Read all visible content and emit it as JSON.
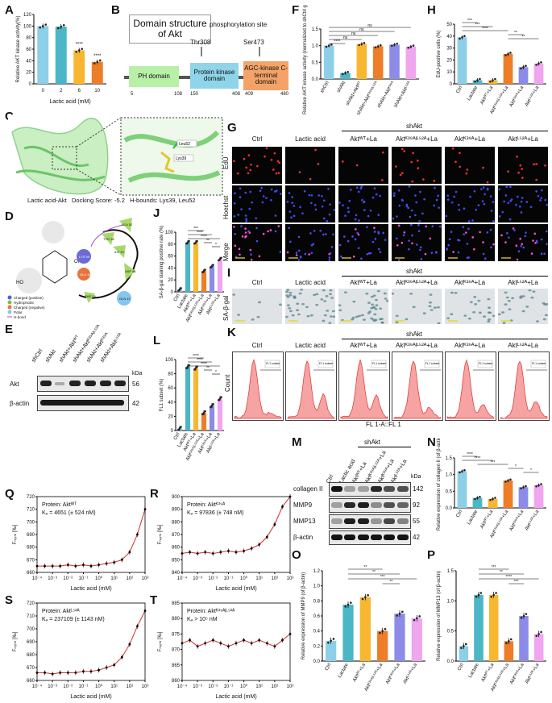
{
  "panels": {
    "A": {
      "label": "A",
      "ylabel": "Relative AKT kinase activity(%)",
      "xlabel": "Lactic acid (mM)",
      "categories": [
        "0",
        "2",
        "6",
        "10"
      ],
      "values": [
        100,
        99,
        58,
        38
      ],
      "sig": [
        "",
        "",
        "****",
        "****"
      ],
      "colors": [
        "#8ecfe8",
        "#4bb6c6",
        "#f7b731",
        "#ee7d28"
      ],
      "yticks": [
        "0",
        "20",
        "40",
        "60",
        "80",
        "100",
        "120"
      ]
    },
    "B": {
      "label": "B",
      "title": "Domain structure of Akt",
      "phos": "phosphorylation site",
      "thr": "Thr308",
      "ser": "Ser473",
      "domains": [
        {
          "name": "PH domain",
          "color": "#b8f0a8"
        },
        {
          "name": "Protein kinase domain",
          "color": "#8fd5ea"
        },
        {
          "name": "AGC-kinase C-terminal domain",
          "color": "#f3a368"
        }
      ],
      "positions": [
        "5",
        "108",
        "150",
        "408",
        "409",
        "480"
      ]
    },
    "C": {
      "label": "C",
      "caption": "Lactic acid-Akt   Docking Score: -5.2   H-bounds: Lys39, Leu52",
      "res1": "Leu52",
      "res2": "Lys39"
    },
    "D": {
      "label": "D",
      "legend": [
        "Charged (positive)",
        "Hydrophobic",
        "Charged (negative)",
        "Polar",
        "H-bond"
      ],
      "legend_colors": [
        "#5b5bd6",
        "#7cc24a",
        "#e8743b",
        "#86c5ee",
        "#b04ad6"
      ],
      "residues": [
        "LEU 52",
        "TYR 18",
        "ILE 19",
        "LYS 39",
        "GLU 40",
        "ASP 46",
        "PHE 55",
        "GLN 47"
      ]
    },
    "E": {
      "label": "E",
      "rows": [
        "Akt",
        "β-actin"
      ],
      "kda": [
        "56",
        "42"
      ],
      "kda_label": "kDa",
      "lanes": [
        "shCtrl",
        "shAkt",
        "shAkt+Aktᵂᵀ",
        "shAkt+Aktᴷ³⁹ᴬʲᴸ⁵²ᴬ",
        "shAkt+Aktᴷ³⁹ᴬ",
        "shAkt+Aktᴸ⁵²ᴬ"
      ]
    },
    "F": {
      "label": "F",
      "ylabel": "Relative AKT kinase activity (normalized to shCtrl group)",
      "categories": [
        "shCtrl",
        "shAkt",
        "shAkt+Aktᵂᵀ",
        "shAkt+Aktᴷ³⁹ᴬʲᴸ⁵²ᴬ",
        "shAkt+Aktᴷ³⁹ᴬ",
        "shAkt+Aktᴸ⁵²ᴬ"
      ],
      "values": [
        1.0,
        0.18,
        1.05,
        0.98,
        1.03,
        0.97
      ],
      "colors": [
        "#8ecfe8",
        "#4bb6c6",
        "#f7b731",
        "#ee7d28",
        "#8c8ce8",
        "#f0a6ee"
      ],
      "yticks": [
        "0.0",
        "0.5",
        "1.0",
        "1.5"
      ],
      "sig": [
        "ns",
        "ns",
        "ns",
        "ns",
        "****"
      ]
    },
    "G": {
      "label": "G",
      "cols": [
        "Ctrl",
        "Lactic acid",
        "Aktᵂᵀ+La",
        "Aktᴷ³⁹ᴬʲᴸ⁵²ᴬ+La",
        "Aktᴷ³⁹ᴬ+La",
        "Aktᴸ⁵²ᴬ+La"
      ],
      "group": "shAkt",
      "rows": [
        "EdU",
        "Hoechst",
        "Merge"
      ]
    },
    "H": {
      "label": "H",
      "ylabel": "EdU-positive cells (%)",
      "categories": [
        "Ctrl",
        "Lactate",
        "Aktᵂᵀ+La",
        "Aktᴷ³⁹ᴬʲᴸ⁵²ᴬ+La",
        "Aktᴷ³⁹ᴬ+La",
        "Aktᴸ⁵²ᴬ+La"
      ],
      "values": [
        39,
        3,
        3,
        25,
        14,
        17
      ],
      "colors": [
        "#8ecfe8",
        "#4bb6c6",
        "#f7b731",
        "#ee7d28",
        "#8c8ce8",
        "#f0a6ee"
      ],
      "yticks": [
        "0",
        "10",
        "20",
        "30",
        "40",
        "50"
      ],
      "sig": [
        "***",
        "***",
        "****",
        "**",
        "**"
      ]
    },
    "I": {
      "label": "I",
      "cols": [
        "Ctrl",
        "Lactic acid",
        "Aktᵂᵀ+La",
        "Aktᴷ³⁹ᴬʲᴸ⁵²ᴬ+La",
        "Aktᴷ³⁹ᴬ+La",
        "Aktᴸ⁵²ᴬ+La"
      ],
      "group": "shAkt",
      "row": "SA-β-gal"
    },
    "J": {
      "label": "J",
      "ylabel": "SA-β-gal staining positive rate (%)",
      "categories": [
        "Ctrl",
        "Lactate",
        "Aktᵂᵀ+La",
        "Aktᴷ³⁹ᴬʲᴸ⁵²ᴬ+La",
        "Aktᴷ³⁹ᴬ+La",
        "Aktᴸ⁵²ᴬ+La"
      ],
      "values": [
        4,
        83,
        83,
        35,
        43,
        55
      ],
      "colors": [
        "#8ecfe8",
        "#4bb6c6",
        "#f7b731",
        "#ee7d28",
        "#8c8ce8",
        "#f0a6ee"
      ],
      "yticks": [
        "0",
        "20",
        "40",
        "60",
        "80",
        "100"
      ],
      "sig": [
        "***",
        "****",
        "****",
        "**",
        "*"
      ]
    },
    "K": {
      "label": "K",
      "cols": [
        "Ctrl",
        "Lactic acid",
        "Aktᵂᵀ+La",
        "Aktᴷ³⁹ᴬʲᴸ⁵²ᴬ+La",
        "Aktᴷ³⁹ᴬ+La",
        "Aktᴸ⁵²ᴬ+La"
      ],
      "group": "shAkt",
      "ylabel": "Count",
      "xlabel": "FL 1-A::FL 1",
      "subset": "FL1 subset"
    },
    "L": {
      "label": "L",
      "ylabel": "FL1 subset (%)",
      "categories": [
        "Ctrl",
        "Lactate",
        "Aktᵂᵀ+La",
        "Aktᴷ³⁹ᴬʲᴸ⁵²ᴬ+La",
        "Aktᴷ³⁹ᴬ+La",
        "Aktᴸ⁵²ᴬ+La"
      ],
      "values": [
        3,
        90,
        88,
        25,
        35,
        45
      ],
      "colors": [
        "#8ecfe8",
        "#4bb6c6",
        "#f7b731",
        "#ee7d28",
        "#8c8ce8",
        "#f0a6ee"
      ],
      "yticks": [
        "0",
        "20",
        "40",
        "60",
        "80",
        "100"
      ],
      "sig": [
        "****",
        "****",
        "****",
        "**",
        "*"
      ]
    },
    "M": {
      "label": "M",
      "group": "shAkt",
      "rows": [
        "collagen II",
        "MMP9",
        "MMP13",
        "β-actin"
      ],
      "kda": [
        "142",
        "92",
        "55",
        "42"
      ],
      "kda_label": "kDa",
      "lanes": [
        "Ctrl",
        "Lactic acid",
        "Aktᵂᵀ+La",
        "Aktᴷ³⁹ᴬʲᴸ⁵²ᴬ+La",
        "Aktᴷ³⁹ᴬ+La",
        "Aktᴸ⁵²ᴬ+La"
      ]
    },
    "N": {
      "label": "N",
      "ylabel": "Relative expression of collagen II (of β-actin)",
      "categories": [
        "Ctrl",
        "Lactate",
        "Aktᵂᵀ+La",
        "Aktᴷ³⁹ᴬʲᴸ⁵²ᴬ+La",
        "Aktᴷ³⁹ᴬ+La",
        "Aktᴸ⁵²ᴬ+La"
      ],
      "values": [
        1.1,
        0.3,
        0.27,
        0.82,
        0.62,
        0.68
      ],
      "colors": [
        "#8ecfe8",
        "#4bb6c6",
        "#f7b731",
        "#ee7d28",
        "#8c8ce8",
        "#f0a6ee"
      ],
      "yticks": [
        "0.0",
        "0.5",
        "1.0",
        "1.5"
      ],
      "sig": [
        "****",
        "****",
        "***",
        "*",
        "*"
      ]
    },
    "O": {
      "label": "O",
      "ylabel": "Relative expression of MMP9 (of β-actin)",
      "categories": [
        "Ctrl",
        "Lactate",
        "Aktᵂᵀ+La",
        "Aktᴷ³⁹ᴬʲᴸ⁵²ᴬ+La",
        "Aktᴷ³⁹ᴬ+La",
        "Aktᴸ⁵²ᴬ+La"
      ],
      "values": [
        0.27,
        0.75,
        0.85,
        0.4,
        0.63,
        0.57
      ],
      "colors": [
        "#8ecfe8",
        "#4bb6c6",
        "#f7b731",
        "#ee7d28",
        "#8c8ce8",
        "#f0a6ee"
      ],
      "yticks": [
        "0.0",
        "0.2",
        "0.4",
        "0.6",
        "0.8",
        "1.0",
        "1.2"
      ],
      "sig": [
        "**",
        "**",
        "***",
        "**"
      ]
    },
    "P": {
      "label": "P",
      "ylabel": "Relative expression of MMP13 (of β-actin)",
      "categories": [
        "Ctrl",
        "Lactate",
        "Aktᵂᵀ+La",
        "Aktᴷ³⁹ᴬʲᴸ⁵²ᴬ+La",
        "Aktᴷ³⁹ᴬ+La",
        "Aktᴸ⁵²ᴬ+La"
      ],
      "values": [
        0.25,
        1.1,
        1.1,
        0.33,
        0.75,
        0.45
      ],
      "colors": [
        "#8ecfe8",
        "#4bb6c6",
        "#f7b731",
        "#ee7d28",
        "#8c8ce8",
        "#f0a6ee"
      ],
      "yticks": [
        "0.0",
        "0.5",
        "1.0",
        "1.5"
      ],
      "sig": [
        "***",
        "**",
        "****",
        "***"
      ]
    },
    "Q": {
      "label": "Q",
      "protein": "Protein: Aktᵂᵀ",
      "kd": "Kₔ = 4651 (± 524 nM)",
      "ylabel": "Fₙₒᵣₘ [‰]",
      "xlabel": "Lactic acid (mM)",
      "yticks": [
        "660",
        "670",
        "680",
        "690",
        "700",
        "710",
        "720"
      ],
      "xticks": [
        "10⁻⁴",
        "10⁻³",
        "10⁻²",
        "10⁻¹",
        "10⁰",
        "10¹",
        "10²",
        "10³"
      ]
    },
    "R": {
      "label": "R",
      "protein": "Protein: Aktᴷ³⁹ᴬ",
      "kd": "Kₔ = 97836 (± 748 nM)",
      "ylabel": "Fₙₒᵣₘ [‰]",
      "xlabel": "Lactic acid (mM)",
      "yticks": [
        "840",
        "850",
        "860",
        "870",
        "880",
        "890",
        "900"
      ],
      "xticks": [
        "10⁻⁴",
        "10⁻³",
        "10⁻²",
        "10⁻¹",
        "10⁰",
        "10¹",
        "10²",
        "10³"
      ]
    },
    "S": {
      "label": "S",
      "protein": "Protein: Aktᴸ⁵²ᴬ",
      "kd": "Kₔ = 237109 (± 1143 nM)",
      "ylabel": "Fₙₒᵣₘ [‰]",
      "xlabel": "Lactic acid (mM)",
      "yticks": [
        "660",
        "670",
        "680",
        "690",
        "700",
        "710",
        "720"
      ],
      "xticks": [
        "10⁻⁴",
        "10⁻³",
        "10⁻²",
        "10⁻¹",
        "10⁰",
        "10¹",
        "10²",
        "10³"
      ]
    },
    "T": {
      "label": "T",
      "protein": "Protein: Aktᴷ³⁹ᴬʲᴸ⁵²ᴬ",
      "kd": "Kₔ > 10⁵ nM",
      "ylabel": "Fₙₒᵣₘ [‰]",
      "xlabel": "Lactic acid (mM)",
      "yticks": [
        "860",
        "865",
        "870",
        "875",
        "880",
        "885"
      ],
      "xticks": [
        "10⁻⁴",
        "10⁻³",
        "10⁻²",
        "10⁻¹",
        "10⁰",
        "10¹",
        "10²",
        "10³"
      ]
    }
  },
  "chart_data": [
    {
      "id": "A",
      "type": "bar",
      "categories": [
        "0",
        "2",
        "6",
        "10"
      ],
      "values": [
        100,
        99,
        58,
        38
      ],
      "ylabel": "Relative AKT kinase activity(%)",
      "xlabel": "Lactic acid (mM)",
      "ylim": [
        0,
        120
      ]
    },
    {
      "id": "F",
      "type": "bar",
      "categories": [
        "shCtrl",
        "shAkt",
        "shAkt+Akt WT",
        "shAkt+Akt K39A,L52A",
        "shAkt+Akt K39A",
        "shAkt+Akt L52A"
      ],
      "values": [
        1.0,
        0.18,
        1.05,
        0.98,
        1.03,
        0.97
      ],
      "ylim": [
        0,
        1.5
      ]
    },
    {
      "id": "H",
      "type": "bar",
      "categories": [
        "Ctrl",
        "Lactate",
        "Akt WT+La",
        "Akt K39A,L52A+La",
        "Akt K39A+La",
        "Akt L52A+La"
      ],
      "values": [
        39,
        3,
        3,
        25,
        14,
        17
      ],
      "ylim": [
        0,
        50
      ]
    },
    {
      "id": "J",
      "type": "bar",
      "categories": [
        "Ctrl",
        "Lactate",
        "Akt WT+La",
        "Akt K39A,L52A+La",
        "Akt K39A+La",
        "Akt L52A+La"
      ],
      "values": [
        4,
        83,
        83,
        35,
        43,
        55
      ],
      "ylim": [
        0,
        100
      ]
    },
    {
      "id": "L",
      "type": "bar",
      "categories": [
        "Ctrl",
        "Lactate",
        "Akt WT+La",
        "Akt K39A,L52A+La",
        "Akt K39A+La",
        "Akt L52A+La"
      ],
      "values": [
        3,
        90,
        88,
        25,
        35,
        45
      ],
      "ylim": [
        0,
        100
      ]
    },
    {
      "id": "N",
      "type": "bar",
      "categories": [
        "Ctrl",
        "Lactate",
        "Akt WT+La",
        "Akt K39A,L52A+La",
        "Akt K39A+La",
        "Akt L52A+La"
      ],
      "values": [
        1.1,
        0.3,
        0.27,
        0.82,
        0.62,
        0.68
      ],
      "ylim": [
        0,
        1.5
      ]
    },
    {
      "id": "O",
      "type": "bar",
      "categories": [
        "Ctrl",
        "Lactate",
        "Akt WT+La",
        "Akt K39A,L52A+La",
        "Akt K39A+La",
        "Akt L52A+La"
      ],
      "values": [
        0.27,
        0.75,
        0.85,
        0.4,
        0.63,
        0.57
      ],
      "ylim": [
        0,
        1.2
      ]
    },
    {
      "id": "P",
      "type": "bar",
      "categories": [
        "Ctrl",
        "Lactate",
        "Akt WT+La",
        "Akt K39A,L52A+La",
        "Akt K39A+La",
        "Akt L52A+La"
      ],
      "values": [
        0.25,
        1.1,
        1.1,
        0.33,
        0.75,
        0.45
      ],
      "ylim": [
        0,
        1.5
      ]
    },
    {
      "id": "Q",
      "type": "scatter",
      "x_log10": [
        -4,
        -3.5,
        -3,
        -2.5,
        -2,
        -1.5,
        -1,
        -0.5,
        0,
        0.5,
        1,
        1.5,
        2,
        2.5,
        3
      ],
      "y": [
        665,
        665,
        665,
        665,
        666,
        665,
        666,
        665,
        666,
        667,
        668,
        670,
        676,
        690,
        710
      ],
      "ylim": [
        660,
        720
      ]
    },
    {
      "id": "R",
      "type": "scatter",
      "x_log10": [
        -4,
        -3.5,
        -3,
        -2.5,
        -2,
        -1.5,
        -1,
        -0.5,
        0,
        0.5,
        1,
        1.5,
        2,
        2.5,
        3
      ],
      "y": [
        855,
        856,
        855,
        856,
        855,
        856,
        857,
        856,
        857,
        859,
        862,
        868,
        878,
        892,
        900
      ],
      "ylim": [
        840,
        900
      ]
    },
    {
      "id": "S",
      "type": "scatter",
      "x_log10": [
        -4,
        -3.5,
        -3,
        -2.5,
        -2,
        -1.5,
        -1,
        -0.5,
        0,
        0.5,
        1,
        1.5,
        2,
        2.5,
        3
      ],
      "y": [
        666,
        666,
        665,
        666,
        666,
        666,
        667,
        667,
        668,
        670,
        672,
        678,
        688,
        702,
        714
      ],
      "ylim": [
        660,
        720
      ]
    },
    {
      "id": "T",
      "type": "scatter",
      "x_log10": [
        -4,
        -3.5,
        -3,
        -2.5,
        -2,
        -1.5,
        -1,
        -0.5,
        0,
        0.5,
        1,
        1.5,
        2,
        2.5,
        3
      ],
      "y": [
        872,
        873,
        871,
        872,
        873,
        872,
        871,
        872,
        873,
        872,
        873,
        872,
        871,
        873,
        875
      ],
      "ylim": [
        860,
        885
      ]
    }
  ]
}
